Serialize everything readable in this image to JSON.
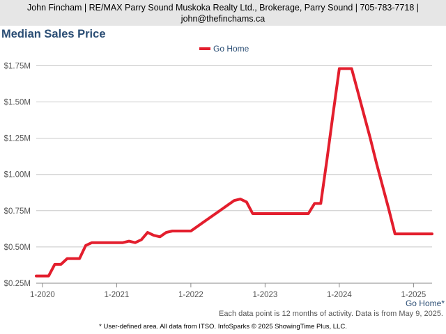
{
  "header": {
    "line1": "John Fincham | RE/MAX Parry Sound Muskoka Realty Ltd., Brokerage, Parry Sound | 705-783-7718 |",
    "line2": "john@thefinchams.ca"
  },
  "note": "Each data point is 12 months of activity. Data is from May 9, 2025.",
  "footer": "* User-defined area. All data from ITSO. InfoSparks © 2025 ShowingTime Plus, LLC.",
  "colors": {
    "series": "#e31e2d",
    "title": "#2a4d74",
    "grid": "#c8c8c8"
  },
  "chart_data": {
    "type": "line",
    "title": "Median Sales Price",
    "xlabel": "",
    "ylabel": "",
    "ylim": [
      0.25,
      1.8
    ],
    "xlim": [
      "2019-12",
      "2025-04"
    ],
    "y_ticks": [
      0.25,
      0.5,
      0.75,
      1.0,
      1.25,
      1.5,
      1.75
    ],
    "y_tick_labels": [
      "$0.25M",
      "$0.50M",
      "$0.75M",
      "$1.00M",
      "$1.25M",
      "$1.50M",
      "$1.75M"
    ],
    "x_ticks": [
      "2020-01",
      "2021-01",
      "2022-01",
      "2023-01",
      "2024-01",
      "2025-01"
    ],
    "x_tick_labels": [
      "1-2020",
      "1-2021",
      "1-2022",
      "1-2023",
      "1-2024",
      "1-2025"
    ],
    "grid": "horizontal",
    "legend_position": "top-center",
    "end_label": "Go Home*",
    "series": [
      {
        "name": "Go Home",
        "x": [
          "2019-12",
          "2020-01",
          "2020-02",
          "2020-03",
          "2020-04",
          "2020-05",
          "2020-06",
          "2020-07",
          "2020-08",
          "2020-09",
          "2020-10",
          "2020-11",
          "2020-12",
          "2021-01",
          "2021-02",
          "2021-03",
          "2021-04",
          "2021-05",
          "2021-06",
          "2021-07",
          "2021-08",
          "2021-09",
          "2021-10",
          "2021-11",
          "2021-12",
          "2022-01",
          "2022-02",
          "2022-03",
          "2022-04",
          "2022-05",
          "2022-06",
          "2022-07",
          "2022-08",
          "2022-09",
          "2022-10",
          "2022-11",
          "2022-12",
          "2023-01",
          "2023-02",
          "2023-03",
          "2023-04",
          "2023-05",
          "2023-06",
          "2023-07",
          "2023-08",
          "2023-09",
          "2023-10",
          "2023-11",
          "2023-12",
          "2024-01",
          "2024-02",
          "2024-03",
          "2024-04",
          "2024-05",
          "2024-06",
          "2024-07",
          "2024-08",
          "2024-09",
          "2024-10",
          "2024-11",
          "2024-12",
          "2025-01",
          "2025-02",
          "2025-03",
          "2025-04"
        ],
        "values": [
          0.3,
          0.3,
          0.3,
          0.38,
          0.38,
          0.42,
          0.42,
          0.42,
          0.51,
          0.53,
          0.53,
          0.53,
          0.53,
          0.53,
          0.53,
          0.54,
          0.53,
          0.55,
          0.6,
          0.58,
          0.57,
          0.6,
          0.61,
          0.61,
          0.61,
          0.61,
          0.64,
          0.67,
          0.7,
          0.73,
          0.76,
          0.79,
          0.82,
          0.83,
          0.81,
          0.73,
          0.73,
          0.73,
          0.73,
          0.73,
          0.73,
          0.73,
          0.73,
          0.73,
          0.73,
          0.8,
          0.8,
          1.1,
          1.42,
          1.73,
          1.73,
          1.73,
          1.57,
          1.41,
          1.25,
          1.08,
          0.92,
          0.76,
          0.59,
          0.59,
          0.59,
          0.59,
          0.59,
          0.59,
          0.59
        ]
      }
    ]
  }
}
